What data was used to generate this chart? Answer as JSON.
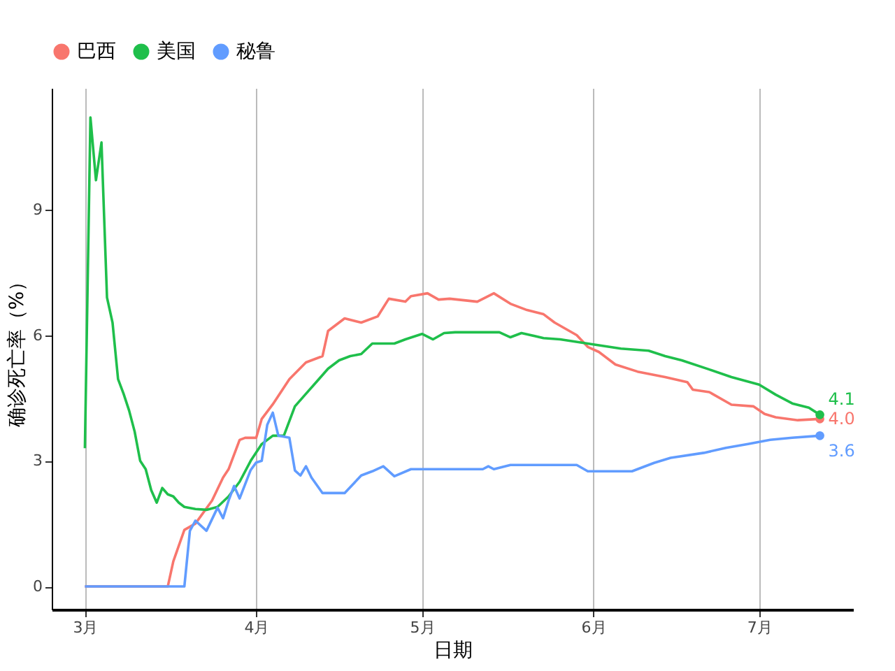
{
  "chart_data": {
    "type": "line",
    "xlabel": "日期",
    "ylabel": "确诊死亡率（%）",
    "xlim": [
      "--02-23",
      "--07-18"
    ],
    "ylim": [
      -0.55,
      11.9
    ],
    "yticks": [
      0,
      3,
      6,
      9
    ],
    "xticks": [
      {
        "value": "--03-01",
        "label": "3月"
      },
      {
        "value": "--04-01",
        "label": "4月"
      },
      {
        "value": "--05-01",
        "label": "5月"
      },
      {
        "value": "--06-01",
        "label": "6月"
      },
      {
        "value": "--07-01",
        "label": "7月"
      }
    ],
    "grid": "x",
    "legend": "top",
    "line_style": "solid",
    "series": [
      {
        "name": "巴西",
        "color": "#f8766d",
        "x": [
          "--03-01",
          "--03-16",
          "--03-17",
          "--03-19",
          "--03-21",
          "--03-24",
          "--03-26",
          "--03-27",
          "--03-29",
          "--03-30",
          "--04-01",
          "--04-02",
          "--04-04",
          "--04-07",
          "--04-10",
          "--04-13",
          "--04-14",
          "--04-17",
          "--04-20",
          "--04-23",
          "--04-25",
          "--04-28",
          "--04-29",
          "--05-02",
          "--05-04",
          "--05-06",
          "--05-11",
          "--05-14",
          "--05-17",
          "--05-20",
          "--05-23",
          "--05-25",
          "--05-29",
          "--05-31",
          "--06-02",
          "--06-05",
          "--06-09",
          "--06-14",
          "--06-18",
          "--06-19",
          "--06-22",
          "--06-26",
          "--06-30",
          "--07-02",
          "--07-04",
          "--07-08",
          "--07-12"
        ],
        "values": [
          0,
          0,
          0.6,
          1.35,
          1.5,
          2.05,
          2.6,
          2.8,
          3.5,
          3.55,
          3.55,
          4.0,
          4.35,
          4.95,
          5.35,
          5.5,
          6.1,
          6.4,
          6.3,
          6.45,
          6.87,
          6.8,
          6.93,
          7.0,
          6.85,
          6.87,
          6.8,
          7.0,
          6.75,
          6.6,
          6.5,
          6.3,
          6.0,
          5.72,
          5.6,
          5.3,
          5.13,
          5.0,
          4.88,
          4.7,
          4.64,
          4.34,
          4.3,
          4.12,
          4.04,
          3.97,
          4.0
        ],
        "value_labels": [
          null,
          null,
          null,
          null,
          null,
          null,
          null,
          null,
          null,
          null,
          null,
          null,
          null,
          null,
          null,
          null,
          null,
          null,
          null,
          null,
          null,
          null,
          null,
          null,
          null,
          null,
          null,
          null,
          null,
          null,
          null,
          null,
          null,
          null,
          null,
          null,
          null,
          null,
          null,
          null,
          null,
          null,
          null,
          null,
          null,
          null,
          "4.0"
        ]
      },
      {
        "name": "美国",
        "color": "#1fbf4b",
        "x": [
          "--03-01",
          "--03-02",
          "--03-03",
          "--03-04",
          "--03-05",
          "--03-06",
          "--03-07",
          "--03-08",
          "--03-09",
          "--03-10",
          "--03-11",
          "--03-12",
          "--03-13",
          "--03-14",
          "--03-15",
          "--03-16",
          "--03-17",
          "--03-18",
          "--03-19",
          "--03-21",
          "--03-23",
          "--03-25",
          "--03-27",
          "--03-29",
          "--03-31",
          "--04-02",
          "--04-04",
          "--04-06",
          "--04-08",
          "--04-10",
          "--04-12",
          "--04-14",
          "--04-16",
          "--04-18",
          "--04-20",
          "--04-22",
          "--04-26",
          "--04-28",
          "--05-01",
          "--05-03",
          "--05-05",
          "--05-07",
          "--05-15",
          "--05-17",
          "--05-19",
          "--05-23",
          "--05-26",
          "--06-01",
          "--06-06",
          "--06-11",
          "--06-14",
          "--06-17",
          "--06-22",
          "--06-26",
          "--07-01",
          "--07-04",
          "--07-07",
          "--07-10",
          "--07-12"
        ],
        "values": [
          3.3,
          11.2,
          9.7,
          10.6,
          6.9,
          6.3,
          4.95,
          4.6,
          4.2,
          3.7,
          3.0,
          2.8,
          2.3,
          2.0,
          2.35,
          2.2,
          2.15,
          2.0,
          1.9,
          1.85,
          1.83,
          1.9,
          2.15,
          2.5,
          3.0,
          3.4,
          3.6,
          3.6,
          4.3,
          4.6,
          4.9,
          5.2,
          5.4,
          5.5,
          5.55,
          5.8,
          5.8,
          5.9,
          6.03,
          5.9,
          6.05,
          6.07,
          6.07,
          5.95,
          6.05,
          5.93,
          5.9,
          5.78,
          5.68,
          5.63,
          5.5,
          5.4,
          5.18,
          5.0,
          4.82,
          4.58,
          4.37,
          4.27,
          4.1
        ],
        "value_labels": [
          null,
          null,
          null,
          null,
          null,
          null,
          null,
          null,
          null,
          null,
          null,
          null,
          null,
          null,
          null,
          null,
          null,
          null,
          null,
          null,
          null,
          null,
          null,
          null,
          null,
          null,
          null,
          null,
          null,
          null,
          null,
          null,
          null,
          null,
          null,
          null,
          null,
          null,
          null,
          null,
          null,
          null,
          null,
          null,
          null,
          null,
          null,
          null,
          null,
          null,
          null,
          null,
          null,
          null,
          null,
          null,
          null,
          null,
          "4.1"
        ]
      },
      {
        "name": "秘鲁",
        "color": "#619cff",
        "x": [
          "--03-01",
          "--03-19",
          "--03-20",
          "--03-21",
          "--03-23",
          "--03-25",
          "--03-26",
          "--03-27",
          "--03-28",
          "--03-29",
          "--03-31",
          "--04-01",
          "--04-02",
          "--04-03",
          "--04-04",
          "--04-05",
          "--04-07",
          "--04-08",
          "--04-09",
          "--04-10",
          "--04-11",
          "--04-13",
          "--04-17",
          "--04-20",
          "--04-22",
          "--04-24",
          "--04-26",
          "--04-29",
          "--05-12",
          "--05-13",
          "--05-14",
          "--05-17",
          "--05-29",
          "--05-31",
          "--06-08",
          "--06-10",
          "--06-12",
          "--06-15",
          "--06-21",
          "--06-25",
          "--06-29",
          "--07-03",
          "--07-07",
          "--07-12"
        ],
        "values": [
          0,
          0,
          1.33,
          1.57,
          1.33,
          1.88,
          1.63,
          2.05,
          2.4,
          2.1,
          2.78,
          2.96,
          3.0,
          3.86,
          4.15,
          3.6,
          3.55,
          2.77,
          2.65,
          2.87,
          2.6,
          2.23,
          2.23,
          2.65,
          2.75,
          2.87,
          2.63,
          2.8,
          2.8,
          2.87,
          2.8,
          2.9,
          2.9,
          2.75,
          2.75,
          2.85,
          2.95,
          3.07,
          3.19,
          3.31,
          3.4,
          3.5,
          3.55,
          3.6
        ],
        "value_labels": [
          null,
          null,
          null,
          null,
          null,
          null,
          null,
          null,
          null,
          null,
          null,
          null,
          null,
          null,
          null,
          null,
          null,
          null,
          null,
          null,
          null,
          null,
          null,
          null,
          null,
          null,
          null,
          null,
          null,
          null,
          null,
          null,
          null,
          null,
          null,
          null,
          null,
          null,
          null,
          null,
          null,
          null,
          null,
          "3.6"
        ]
      }
    ]
  }
}
